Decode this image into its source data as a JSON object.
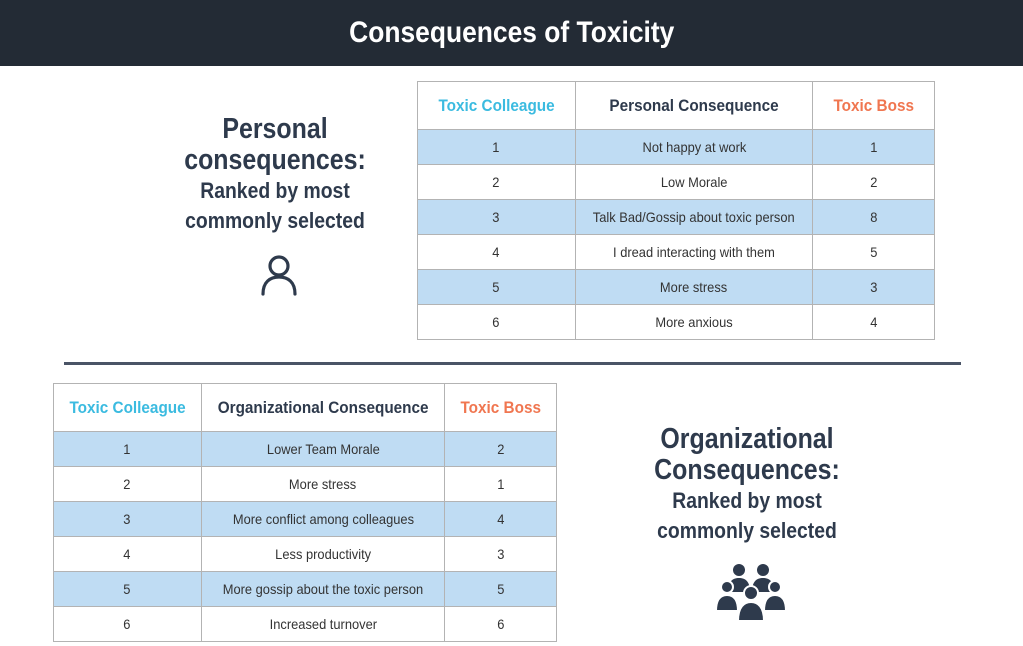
{
  "header": {
    "title": "Consequences of Toxicity"
  },
  "personal": {
    "title_line1": "Personal",
    "title_line2": "consequences:",
    "subtitle_line1": "Ranked by most",
    "subtitle_line2": "commonly selected",
    "icon": "person-icon",
    "table": {
      "headers": [
        "Toxic Colleague",
        "Personal Consequence",
        "Toxic Boss"
      ],
      "rows": [
        [
          "1",
          "Not happy at work",
          "1"
        ],
        [
          "2",
          "Low Morale",
          "2"
        ],
        [
          "3",
          "Talk Bad/Gossip about toxic person",
          "8"
        ],
        [
          "4",
          "I dread interacting with them",
          "5"
        ],
        [
          "5",
          "More stress",
          "3"
        ],
        [
          "6",
          "More anxious",
          "4"
        ]
      ]
    }
  },
  "organizational": {
    "title_line1": "Organizational",
    "title_line2": "Consequences:",
    "subtitle_line1": "Ranked by most",
    "subtitle_line2": "commonly selected",
    "icon": "group-icon",
    "table": {
      "headers": [
        "Toxic Colleague",
        "Organizational Consequence",
        "Toxic Boss"
      ],
      "rows": [
        [
          "1",
          "Lower Team Morale",
          "2"
        ],
        [
          "2",
          "More stress",
          "1"
        ],
        [
          "3",
          "More conflict among colleagues",
          "4"
        ],
        [
          "4",
          "Less productivity",
          "3"
        ],
        [
          "5",
          "More gossip about the toxic person",
          "5"
        ],
        [
          "6",
          "Increased turnover",
          "6"
        ]
      ]
    }
  },
  "colors": {
    "header_bg": "#232b35",
    "colleague": "#3bbbe0",
    "boss": "#f07650",
    "row_highlight": "#bfdcf3",
    "title_text": "#2e3a4c"
  }
}
